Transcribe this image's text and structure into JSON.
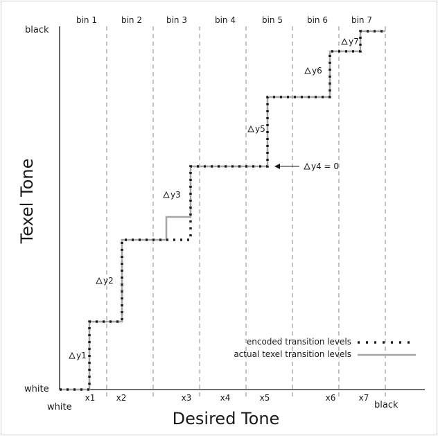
{
  "axes": {
    "x_title": "Desired Tone",
    "y_title": "Texel Tone",
    "y_top_label": "black",
    "y_bottom_label": "white",
    "x_left_label": "white",
    "x_right_label": "black"
  },
  "bins": [
    "bin 1",
    "bin 2",
    "bin 3",
    "bin 4",
    "bin 5",
    "bin 6",
    "bin 7"
  ],
  "x_ticks": [
    "x1",
    "x2",
    "x3",
    "x4",
    "x5",
    "x6",
    "x7"
  ],
  "delta_labels": {
    "dy1": "y1",
    "dy2": "y2",
    "dy3": "y3",
    "dy4": "y4 = 0",
    "dy5": "y5",
    "dy6": "y6",
    "dy7": "y7"
  },
  "legend": {
    "encoded": "encoded transition levels",
    "actual": "actual texel transition levels"
  },
  "colors": {
    "encoded": "#1a1a1a",
    "actual": "#a6a6a6",
    "bin_divider": "#888888",
    "axis": "#1a1a1a"
  }
}
